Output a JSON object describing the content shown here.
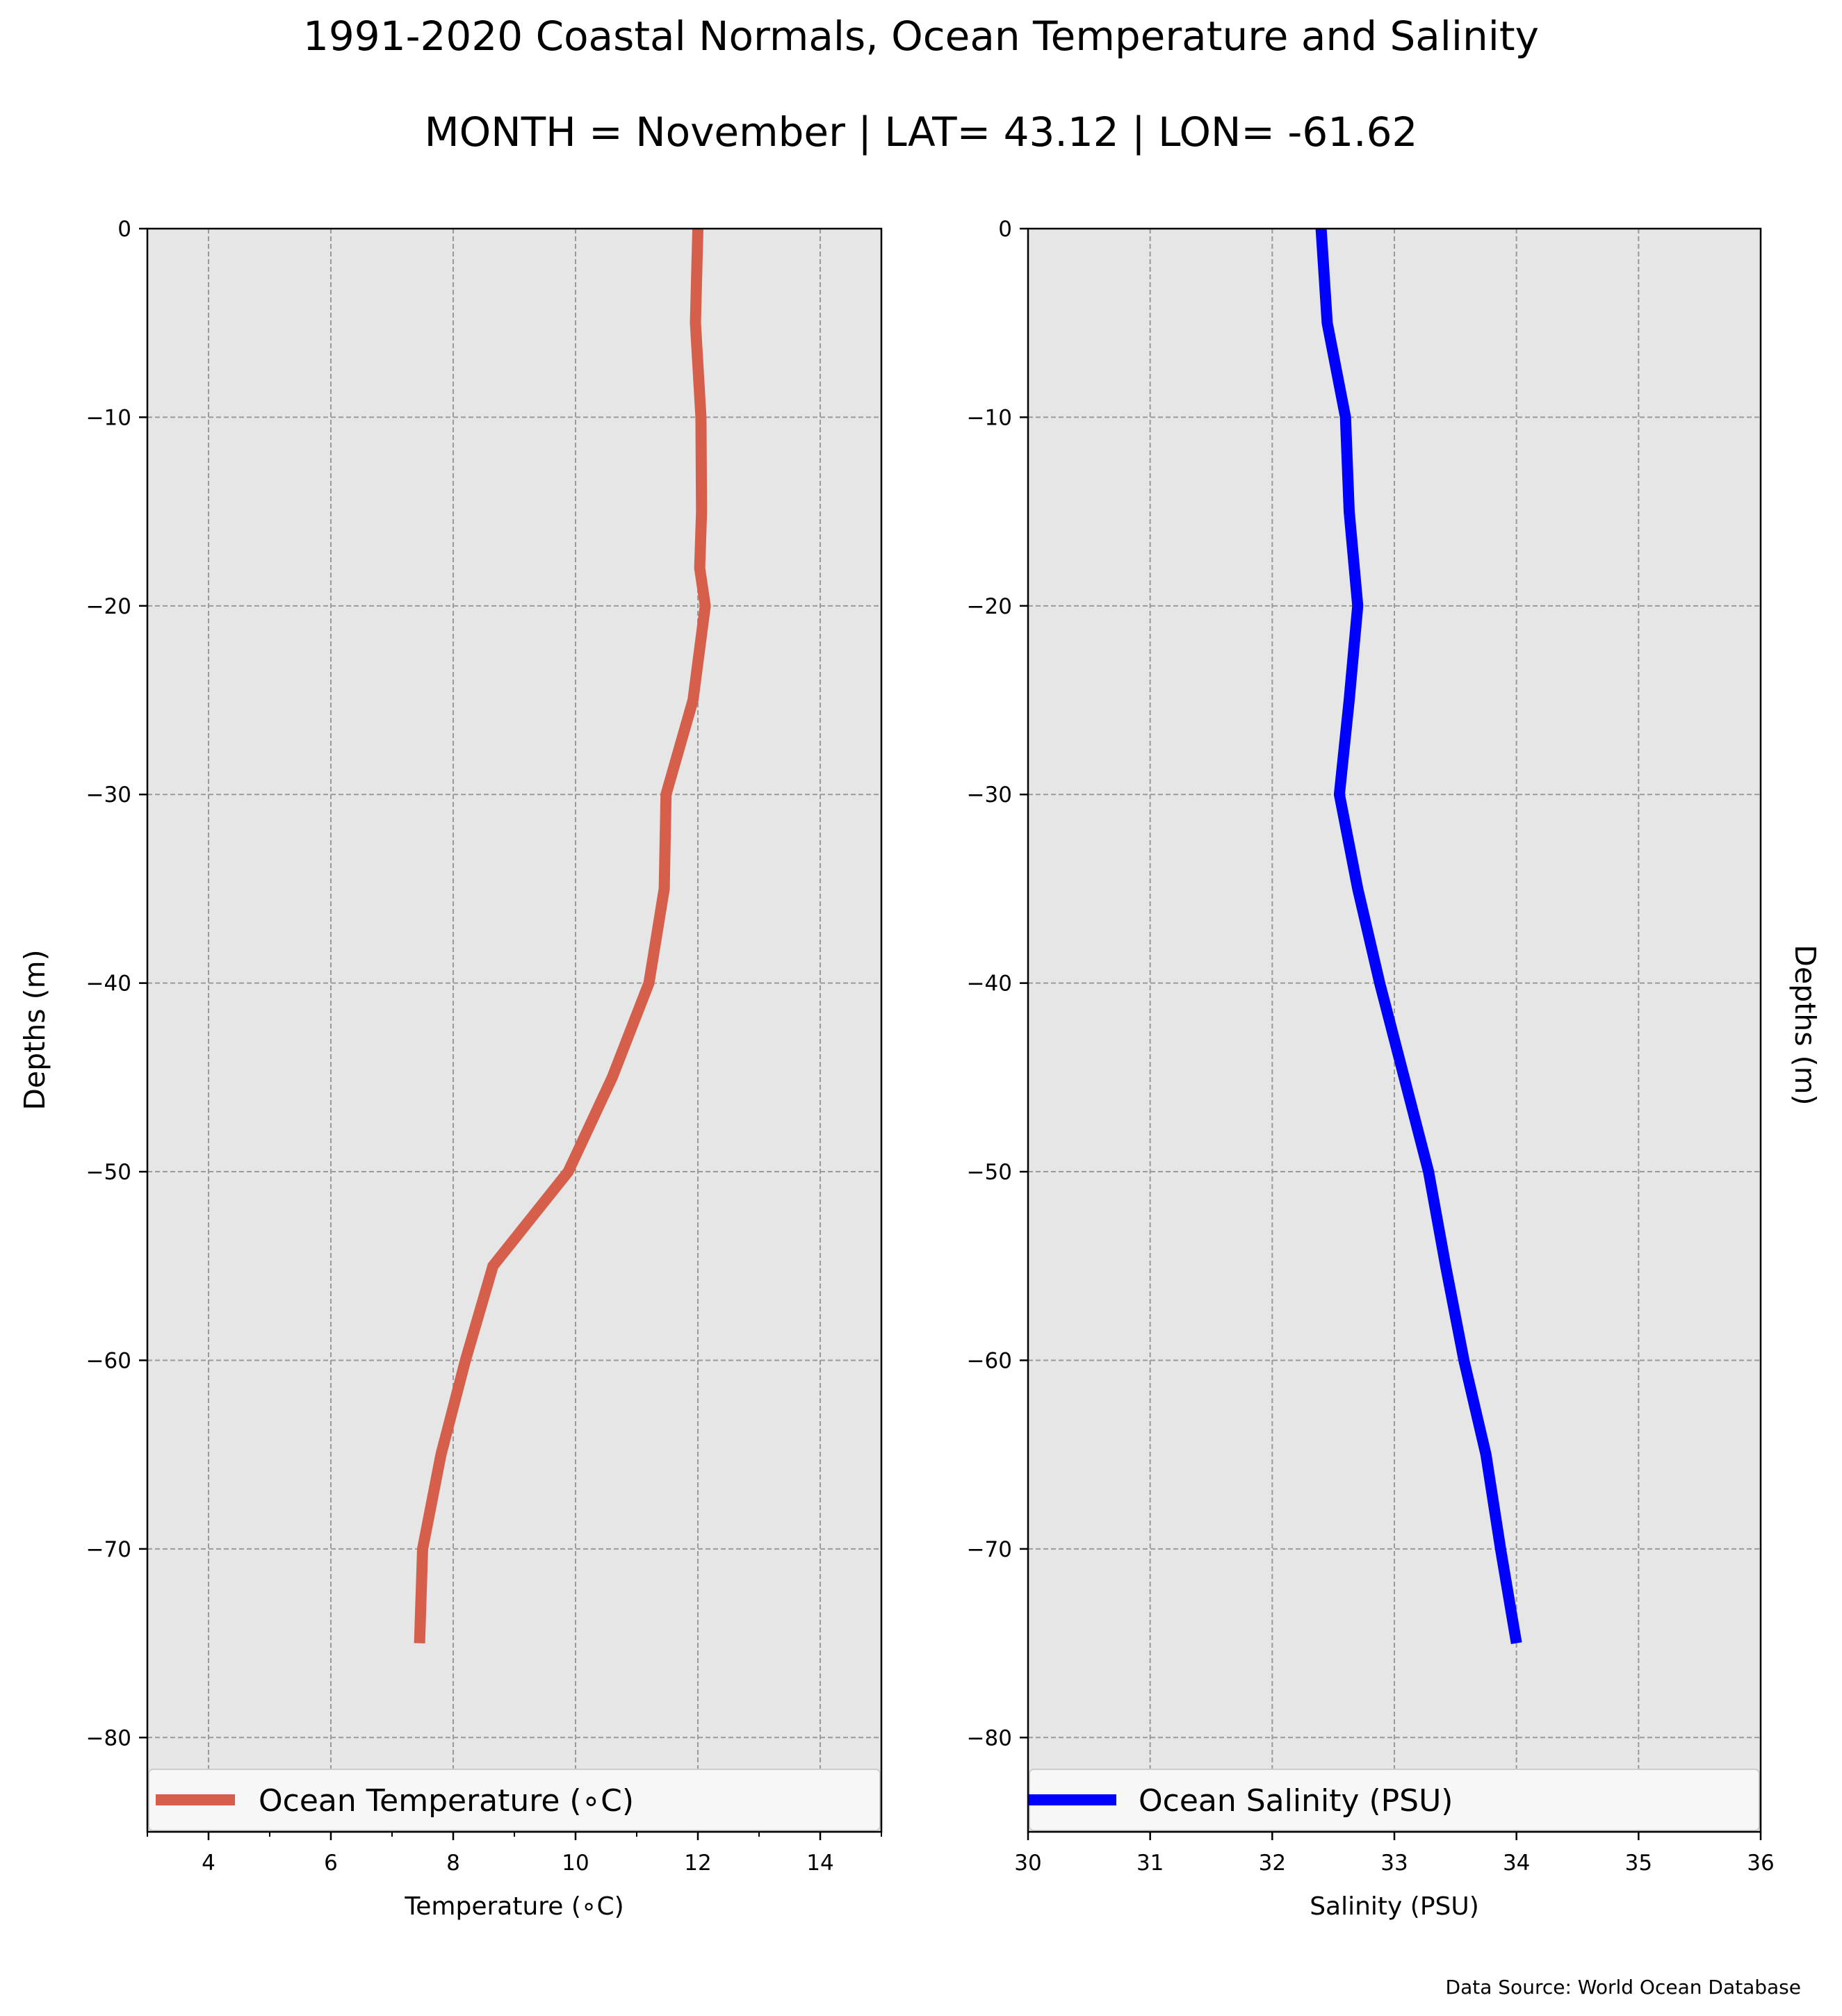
{
  "figure": {
    "title": "1991-2020 Coastal Normals, Ocean Temperature and Salinity",
    "subtitle": "MONTH = November | LAT= 43.12 | LON= -61.62",
    "source": "Data Source: World Ocean Database"
  },
  "chart_data": [
    {
      "type": "line",
      "xlabel": "Temperature ($^\\circ$C)",
      "xlabel_display": "Temperature (∘C)",
      "ylabel": "Depths (m)",
      "xlim": [
        3,
        15
      ],
      "ylim": [
        -85,
        0
      ],
      "xticks": [
        4,
        6,
        8,
        10,
        12,
        14
      ],
      "xtick_labels": [
        "4",
        "6",
        "8",
        "10",
        "12",
        "14"
      ],
      "yticks": [
        0,
        -10,
        -20,
        -30,
        -40,
        -50,
        -60,
        -70,
        -80
      ],
      "ytick_labels": [
        "0",
        "−10",
        "−20",
        "−30",
        "−40",
        "−50",
        "−60",
        "−70",
        "−80"
      ],
      "grid": true,
      "legend_position": "bottom",
      "series": [
        {
          "name": "Ocean Temperature (∘C)",
          "color": "#d65f4c",
          "x": [
            12.0,
            11.96,
            12.05,
            12.06,
            12.03,
            12.12,
            11.92,
            11.48,
            11.45,
            11.2,
            10.6,
            9.88,
            8.65,
            8.2,
            7.8,
            7.5,
            7.45
          ],
          "y": [
            0,
            -5,
            -10,
            -15,
            -18,
            -20,
            -25,
            -30,
            -35,
            -40,
            -45,
            -50,
            -55,
            -60,
            -65,
            -70,
            -75
          ]
        }
      ]
    },
    {
      "type": "line",
      "xlabel": "Salinity (PSU)",
      "ylabel": "Depths (m)",
      "xlim": [
        30,
        36
      ],
      "ylim": [
        -85,
        0
      ],
      "xticks": [
        30,
        31,
        32,
        33,
        34,
        35,
        36
      ],
      "xtick_labels": [
        "30",
        "31",
        "32",
        "33",
        "34",
        "35",
        "36"
      ],
      "yticks": [
        0,
        -10,
        -20,
        -30,
        -40,
        -50,
        -60,
        -70,
        -80
      ],
      "ytick_labels": [
        "0",
        "−10",
        "−20",
        "−30",
        "−40",
        "−50",
        "−60",
        "−70",
        "−80"
      ],
      "grid": true,
      "legend_position": "bottom",
      "series": [
        {
          "name": "Ocean Salinity (PSU)",
          "color": "#0000ff",
          "x": [
            32.4,
            32.45,
            32.6,
            32.63,
            32.7,
            32.63,
            32.55,
            32.7,
            32.88,
            33.08,
            33.28,
            33.42,
            33.57,
            33.75,
            33.87,
            34.0
          ],
          "y": [
            0,
            -5,
            -10,
            -15,
            -20,
            -25,
            -30,
            -35,
            -40,
            -45,
            -50,
            -55,
            -60,
            -65,
            -70,
            -75
          ]
        }
      ]
    }
  ],
  "colors": {
    "plot_background": "#e6e6e6",
    "grid": "#9a9a9a",
    "legend_background": "#f7f7f7"
  }
}
